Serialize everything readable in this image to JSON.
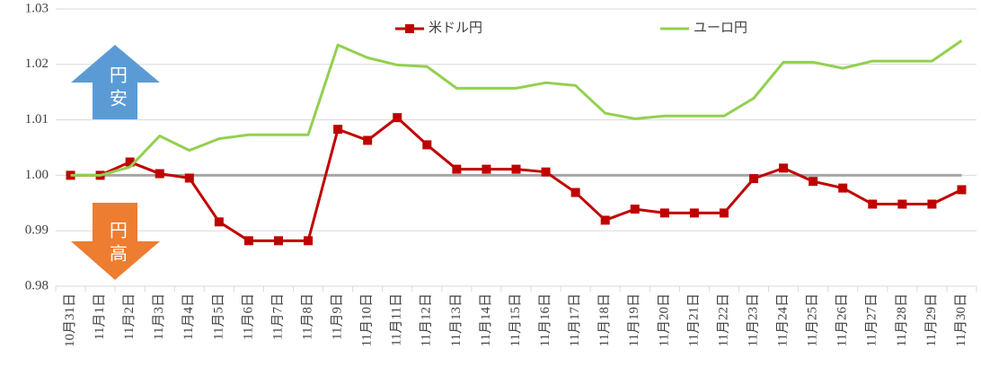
{
  "chart_data": {
    "type": "line",
    "categories": [
      "10月31日",
      "11月1日",
      "11月2日",
      "11月3日",
      "11月4日",
      "11月5日",
      "11月6日",
      "11月7日",
      "11月8日",
      "11月9日",
      "11月10日",
      "11月11日",
      "11月12日",
      "11月13日",
      "11月14日",
      "11月15日",
      "11月16日",
      "11月17日",
      "11月18日",
      "11月19日",
      "11月20日",
      "11月21日",
      "11月22日",
      "11月23日",
      "11月24日",
      "11月25日",
      "11月26日",
      "11月27日",
      "11月28日",
      "11月29日",
      "11月30日"
    ],
    "series": [
      {
        "name": "米ドル円",
        "color": "#c00000",
        "marker": "square",
        "values": [
          1.0,
          1.0,
          1.0024,
          1.0003,
          0.9995,
          0.9916,
          0.9882,
          0.9882,
          0.9882,
          1.0083,
          1.0063,
          1.0104,
          1.0055,
          1.0011,
          1.0011,
          1.0011,
          1.0006,
          0.9969,
          0.9919,
          0.9939,
          0.9932,
          0.9932,
          0.9932,
          0.9994,
          1.0013,
          0.9989,
          0.9977,
          0.9948,
          0.9948,
          0.9948,
          0.9974
        ]
      },
      {
        "name": "ユーロ円",
        "color": "#92d050",
        "values": [
          1.0,
          1.0,
          1.0015,
          1.0071,
          1.0045,
          1.0066,
          1.0073,
          1.0073,
          1.0073,
          1.0235,
          1.0212,
          1.0199,
          1.0196,
          1.0157,
          1.0157,
          1.0157,
          1.0167,
          1.0162,
          1.0112,
          1.0102,
          1.0107,
          1.0107,
          1.0107,
          1.0139,
          1.0204,
          1.0204,
          1.0193,
          1.0206,
          1.0206,
          1.0206,
          1.0243
        ]
      }
    ],
    "ylim": [
      0.98,
      1.03
    ],
    "yticks": [
      0.98,
      0.99,
      {
        "value": 1,
        "label": "1.00"
      },
      1.01,
      1.02,
      1.03
    ],
    "reference_line": 1,
    "grid": true,
    "legend": "top",
    "annotations": [
      {
        "text": "円安",
        "color": "#5b9bd5",
        "direction": "up"
      },
      {
        "text": "円高",
        "color": "#ed7d31",
        "direction": "down"
      }
    ]
  }
}
